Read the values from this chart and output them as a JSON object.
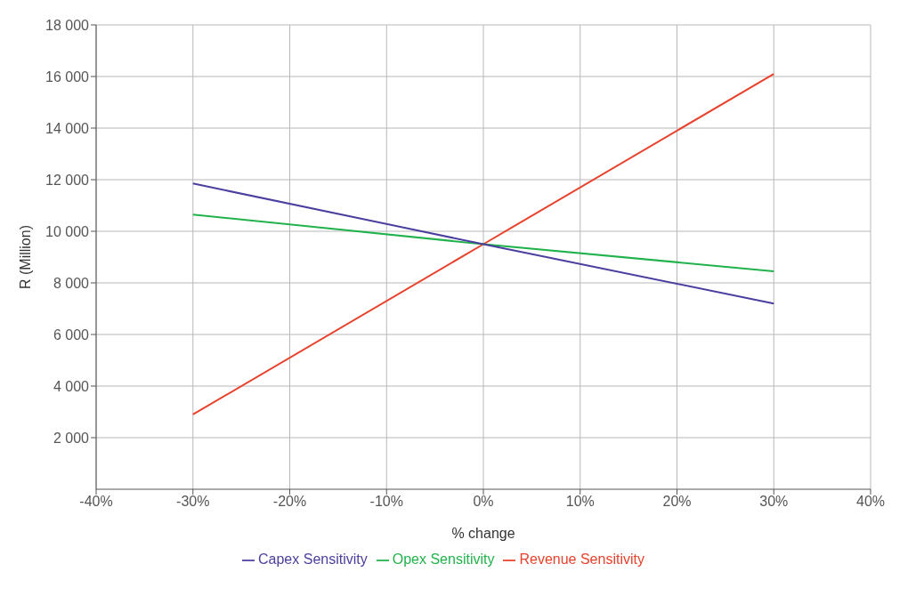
{
  "chart_data": {
    "type": "line",
    "xlabel": "% change",
    "ylabel": "R (Million)",
    "x": [
      -0.3,
      0,
      0.3
    ],
    "series": [
      {
        "name": "Revenue Sensitivity",
        "color": "#e8412c",
        "values": [
          2900,
          9500,
          16100
        ]
      },
      {
        "name": "Opex Sensitivity",
        "color": "#22b24c",
        "values": [
          10650,
          9500,
          8450
        ]
      },
      {
        "name": "Capex Sensitivity",
        "color": "#4a3f9f",
        "values": [
          11850,
          9500,
          7200
        ]
      }
    ],
    "xlim": [
      -0.4,
      0.4
    ],
    "xticks": [
      {
        "value": -0.4,
        "label": "-40%"
      },
      {
        "value": -0.3,
        "label": "-30%"
      },
      {
        "value": -0.2,
        "label": "-20%"
      },
      {
        "value": -0.1,
        "label": "-10%"
      },
      {
        "value": 0,
        "label": "0%"
      },
      {
        "value": 0.1,
        "label": "10%"
      },
      {
        "value": 0.2,
        "label": "20%"
      },
      {
        "value": 0.3,
        "label": "30%"
      },
      {
        "value": 0.4,
        "label": "40%"
      }
    ],
    "ylim": [
      0,
      18000
    ],
    "yticks": [
      {
        "value": 2000,
        "label": "2 000"
      },
      {
        "value": 4000,
        "label": "4 000"
      },
      {
        "value": 6000,
        "label": "6 000"
      },
      {
        "value": 8000,
        "label": "8 000"
      },
      {
        "value": 10000,
        "label": "10 000"
      },
      {
        "value": 12000,
        "label": "12 000"
      },
      {
        "value": 14000,
        "label": "14 000"
      },
      {
        "value": 16000,
        "label": "16 000"
      },
      {
        "value": 18000,
        "label": "18 000"
      }
    ],
    "grid": true,
    "legend": "bottom",
    "marker": "none",
    "line_style": "solid"
  }
}
